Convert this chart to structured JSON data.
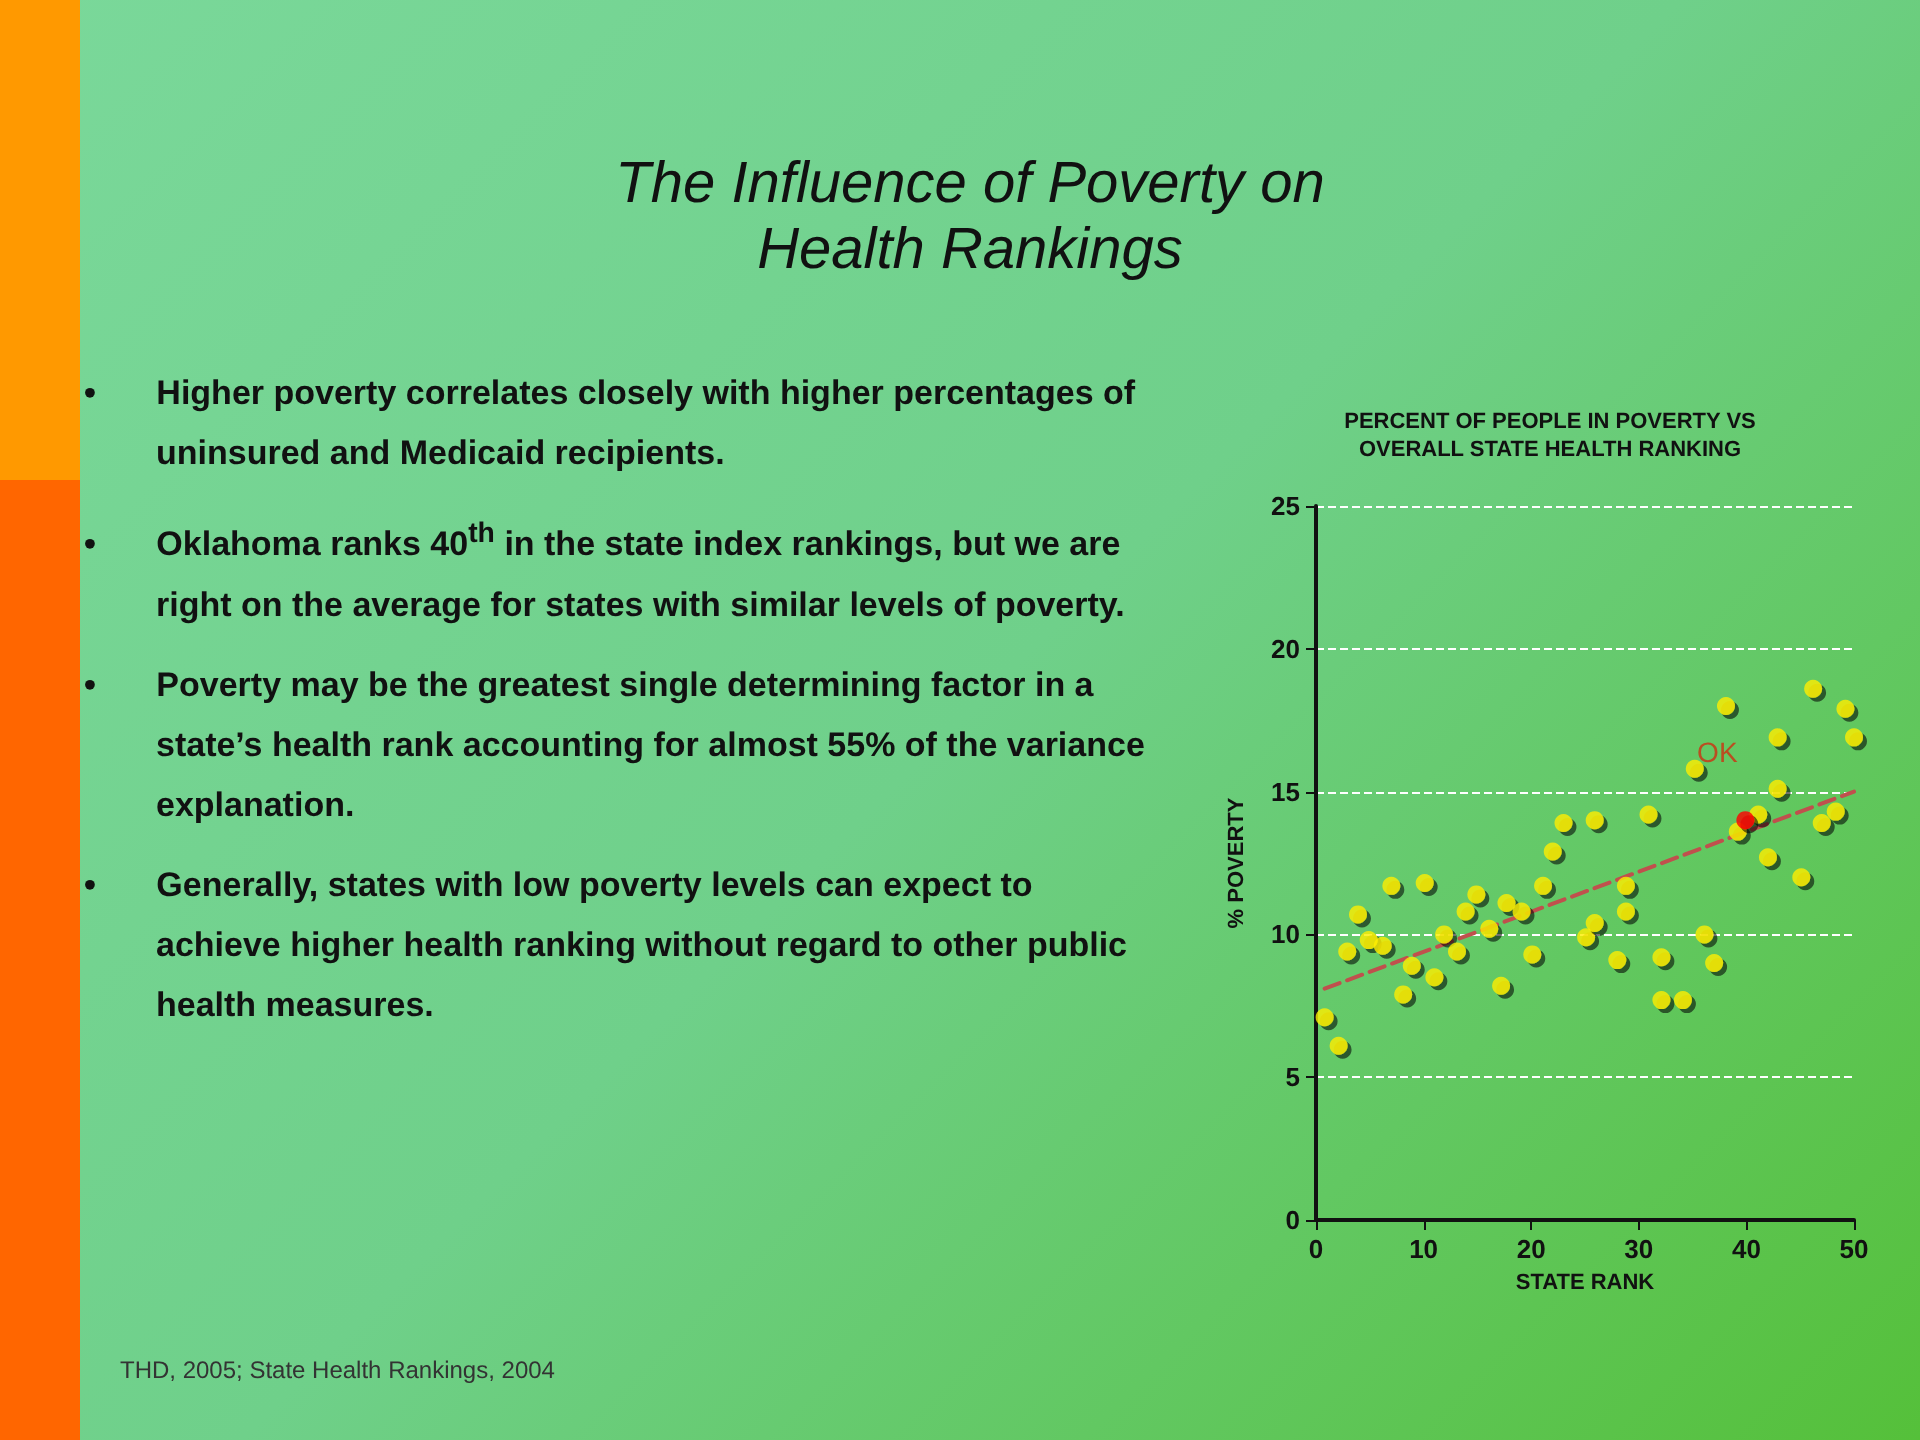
{
  "chart_data": {
    "type": "scatter",
    "title": "The Influence of Poverty on\nHealth Rankings",
    "subtitle": "PERCENT OF PEOPLE IN POVERTY VS\nOVERALL STATE HEALTH RANKING",
    "xlabel": "STATE RANK",
    "ylabel": "% POVERTY",
    "xlim": [
      0,
      50
    ],
    "xticks": [
      0,
      10,
      20,
      30,
      40,
      50
    ],
    "ylim": [
      0,
      25
    ],
    "yticks": [
      0,
      5,
      10,
      15,
      20,
      25
    ],
    "grid": "y",
    "marker": "circle",
    "series": [
      {
        "color": "#ffee00",
        "x": [
          0.8,
          2.1,
          2.9,
          3.9,
          4.9,
          6.2,
          7,
          8.1,
          8.9,
          10.1,
          11,
          11.9,
          13.1,
          13.9,
          14.9,
          16.1,
          17.2,
          17.7,
          19.1,
          20.1,
          21.1,
          22,
          23,
          25.1,
          25.9,
          25.9,
          28,
          28.8,
          28.8,
          30.9,
          32.1,
          32.1,
          34.1,
          35.2,
          36.1,
          37,
          38.1,
          39.2,
          41.1,
          42,
          42.9,
          42.9,
          45.1,
          46.2,
          47,
          48.3,
          49.2,
          50
        ],
        "values": [
          7.1,
          6.1,
          9.4,
          10.7,
          9.8,
          9.6,
          11.7,
          7.9,
          8.9,
          11.8,
          8.5,
          10,
          9.4,
          10.8,
          11.4,
          10.2,
          8.2,
          11.1,
          10.8,
          9.3,
          11.7,
          12.9,
          13.9,
          9.9,
          10.4,
          14,
          9.1,
          11.7,
          10.8,
          14.2,
          9.2,
          7.7,
          7.7,
          15.8,
          10,
          9,
          18,
          13.6,
          14.2,
          12.7,
          16.9,
          15.1,
          12,
          18.6,
          13.9,
          14.3,
          17.9,
          16.9
        ]
      },
      {
        "color": "#ff0000",
        "x": [
          39.9
        ],
        "values": [
          14
        ]
      },
      {
        "type": "line",
        "marker": "none",
        "color": "#c0504d",
        "line_style": "dashed",
        "x": [
          0.8,
          50
        ],
        "values": [
          8.1,
          15
        ]
      }
    ],
    "annotations": [
      "• Higher poverty correlates closely with higher percentages of uninsured and Medicaid recipients.",
      "• Oklahoma ranks 40$^{th}$ in the state index rankings, but we are right on the average for states with similar levels of poverty.",
      "• Poverty may be the greatest single determining factor in a state’s health rank accounting for almost 55% of the variance explanation.",
      "• Generally, states with low poverty levels can expect to achieve higher health ranking without regard to other public health measures.",
      "THD, 2005; State Health Rankings, 2004",
      {
        "text": "OK",
        "x": 39.9,
        "y": 14
      }
    ]
  }
}
